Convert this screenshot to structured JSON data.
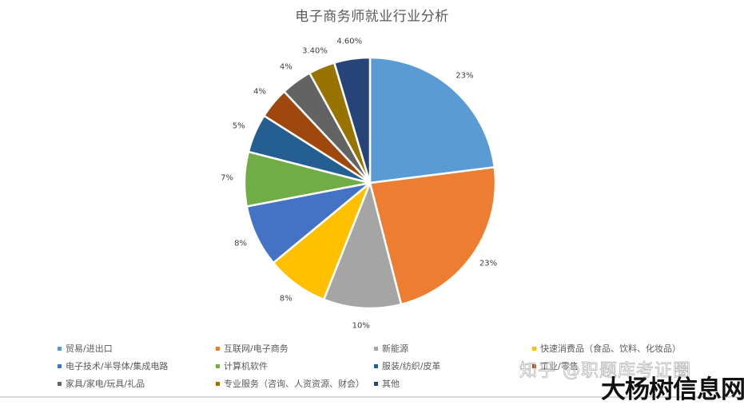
{
  "chart_data": {
    "type": "pie",
    "title": "电子商务师就业行业分析",
    "start_angle_deg": 0,
    "direction": "clockwise",
    "categories": [
      "贸易/进出口",
      "互联网/电子商务",
      "新能源",
      "快速消费品（食品、饮料、化妆品）",
      "电子技术/半导体/集成电路",
      "计算机软件",
      "服装/纺织/皮革",
      "工业/零售",
      "家具/家电/玩具/礼品",
      "专业服务（咨询、人资资源、财会）",
      "其他"
    ],
    "values": [
      23,
      23,
      10,
      8,
      8,
      7,
      5,
      4,
      4,
      3.4,
      4.6
    ],
    "data_labels": [
      "23%",
      "23%",
      "10%",
      "8%",
      "8%",
      "7%",
      "5%",
      "4%",
      "4%",
      "3.40%",
      "4.60%"
    ],
    "colors": [
      "#5B9BD5",
      "#ED7D31",
      "#A5A5A5",
      "#FFC000",
      "#4472C4",
      "#70AD47",
      "#255E91",
      "#9E480E",
      "#636363",
      "#997300",
      "#264478"
    ],
    "legend_position": "bottom",
    "legend_columns": 4
  },
  "watermarks": {
    "zhihu": "知乎 @职题库考证圈",
    "site": "大杨树信息网"
  }
}
